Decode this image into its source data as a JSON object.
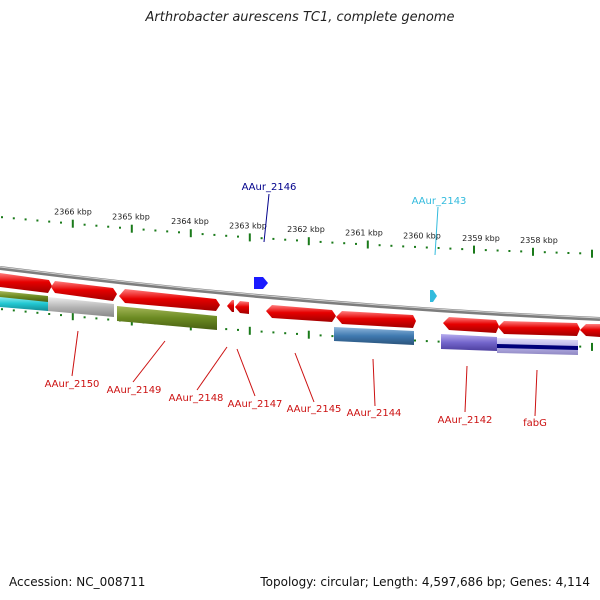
{
  "title": "Arthrobacter aurescens TC1, complete genome",
  "footer": {
    "accession": "Accession: NC_008711",
    "summary": "Topology: circular; Length: 4,597,686 bp; Genes: 4,114"
  },
  "colors": {
    "forward_gene": "#e60000",
    "backbone": "#8a8a8a",
    "tick": "#1a7a1a",
    "forward_label": "#cc1111",
    "highlight_label_dark": "#00008b",
    "highlight_label_light": "#33bbdd"
  },
  "scale": {
    "unit": "kbp",
    "ticks": [
      "2366 kbp",
      "2365 kbp",
      "2364 kbp",
      "2363 kbp",
      "2362 kbp",
      "2361 kbp",
      "2360 kbp",
      "2359 kbp",
      "2358 kbp"
    ]
  },
  "top_labels": [
    {
      "name": "AAur_2146",
      "color": "#00008b"
    },
    {
      "name": "AAur_2143",
      "color": "#33bbdd"
    }
  ],
  "bottom_labels": [
    {
      "name": "AAur_2150"
    },
    {
      "name": "AAur_2149"
    },
    {
      "name": "AAur_2148"
    },
    {
      "name": "AAur_2147"
    },
    {
      "name": "AAur_2145"
    },
    {
      "name": "AAur_2144"
    },
    {
      "name": "AAur_2142"
    },
    {
      "name": "fabG"
    }
  ]
}
